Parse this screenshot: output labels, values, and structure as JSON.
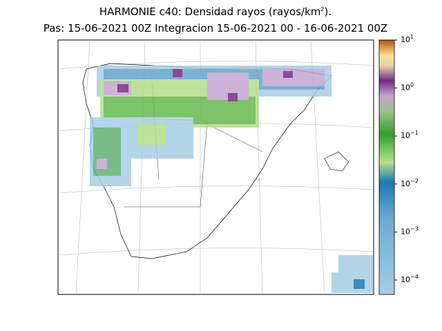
{
  "header": {
    "title_main": "HARMONIE c40: Densidad rayos  (rayos/km",
    "title_sup": "2",
    "title_end": ").",
    "subtitle": "Pas: 15-06-2021 00Z Integracion 15-06-2021 00 - 16-06-2021 00Z"
  },
  "colorbar": {
    "scale": "log",
    "lim": [
      5e-05,
      10
    ],
    "ticks": [
      {
        "value": 0.0001,
        "label": "10",
        "exponent": "−4"
      },
      {
        "value": 0.001,
        "label": "10",
        "exponent": "−3"
      },
      {
        "value": 0.01,
        "label": "10",
        "exponent": "−2"
      },
      {
        "value": 0.1,
        "label": "10",
        "exponent": "−1"
      },
      {
        "value": 1,
        "label": "10",
        "exponent": "0"
      },
      {
        "value": 10,
        "label": "10",
        "exponent": "1"
      }
    ]
  }
}
